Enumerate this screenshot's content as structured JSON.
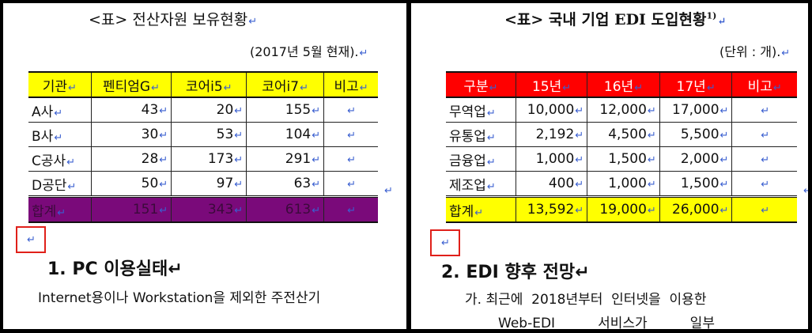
{
  "return_mark": "↵",
  "left": {
    "title": "<표> 전산자원 보유현황",
    "subtitle": "(2017년 5월 현재).",
    "table": {
      "headers": [
        "기관",
        "펜티엄G",
        "코어i5",
        "코어i7",
        "비고"
      ],
      "rows": [
        [
          "A사",
          "43",
          "20",
          "155",
          ""
        ],
        [
          "B사",
          "30",
          "53",
          "104",
          ""
        ],
        [
          "C공사",
          "28",
          "173",
          "291",
          ""
        ],
        [
          "D공단",
          "50",
          "97",
          "63",
          ""
        ]
      ],
      "total": [
        "합계",
        "151",
        "343",
        "613",
        ""
      ]
    },
    "heading": "1. PC 이용실태",
    "paragraph": "Internet용이나 Workstation을 제외한 주전산기"
  },
  "right": {
    "title": "<표> 국내 기업 EDI 도입현황",
    "footnote_ref": "1)",
    "subtitle": "(단위 : 개).",
    "table": {
      "headers": [
        "구분",
        "15년",
        "16년",
        "17년",
        "비고"
      ],
      "rows": [
        [
          "무역업",
          "10,000",
          "12,000",
          "17,000",
          ""
        ],
        [
          "유통업",
          "2,192",
          "4,500",
          "5,500",
          ""
        ],
        [
          "금융업",
          "1,000",
          "1,500",
          "2,000",
          ""
        ],
        [
          "제조업",
          "400",
          "1,000",
          "1,500",
          ""
        ]
      ],
      "total": [
        "합계",
        "13,592",
        "19,000",
        "26,000",
        ""
      ]
    },
    "heading": "2. EDI 향후 전망",
    "line1": "가. 최근에  2018년부터  인터넷을  이용한",
    "line2": "Web-EDI          서비스가          일부"
  },
  "colors": {
    "left_header": "#ffff00",
    "left_total": "#7a0a7a",
    "right_header": "#ff0000",
    "right_total": "#ffff00",
    "highlight_box": "#e0201a",
    "return_mark": "#3a5fd0"
  }
}
